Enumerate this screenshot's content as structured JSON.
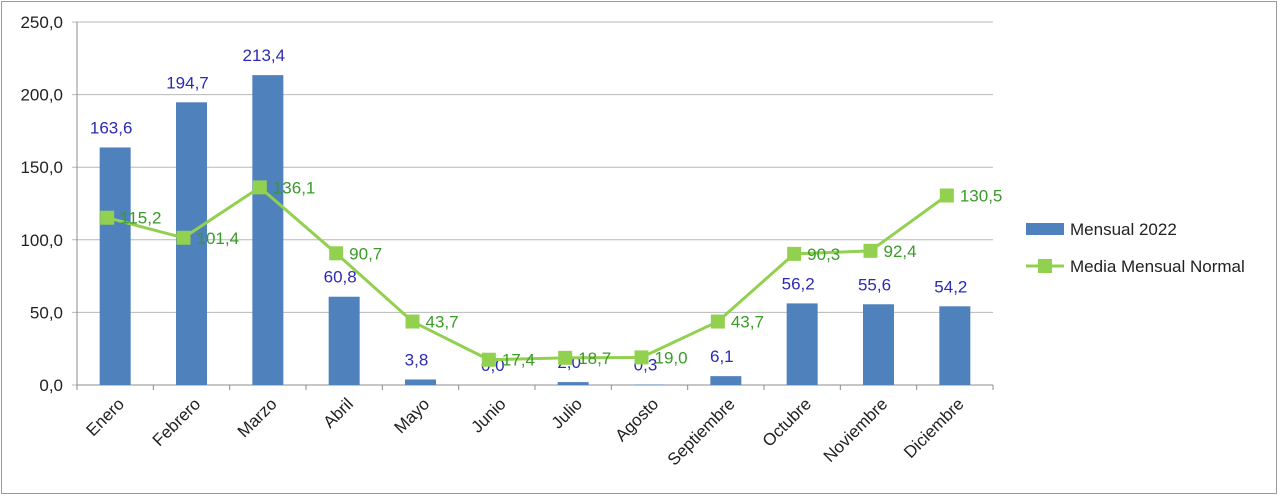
{
  "chart_data": {
    "type": "bar",
    "categories": [
      "Enero",
      "Febrero",
      "Marzo",
      "Abril",
      "Mayo",
      "Junio",
      "Julio",
      "Agosto",
      "Septiembre",
      "Octubre",
      "Noviembre",
      "Diciembre"
    ],
    "series": [
      {
        "name": "Mensual 2022",
        "type": "bar",
        "color": "#4f81bd",
        "label_color": "#2b2bb3",
        "values": [
          163.6,
          194.7,
          213.4,
          60.8,
          3.8,
          0.0,
          2.0,
          0.3,
          6.1,
          56.2,
          55.6,
          54.2
        ],
        "labels": [
          "163,6",
          "194,7",
          "213,4",
          "60,8",
          "3,8",
          "0,0",
          "2,0",
          "0,3",
          "6,1",
          "56,2",
          "55,6",
          "54,2"
        ]
      },
      {
        "name": "Media Mensual Normal",
        "type": "line",
        "color": "#92d050",
        "label_color": "#3a9a2a",
        "values": [
          115.2,
          101.4,
          136.1,
          90.7,
          43.7,
          17.4,
          18.7,
          19.0,
          43.7,
          90.3,
          92.4,
          130.5
        ],
        "labels": [
          "115,2",
          "101,4",
          "136,1",
          "90,7",
          "43,7",
          "17,4",
          "18,7",
          "19,0",
          "43,7",
          "90,3",
          "92,4",
          "130,5"
        ]
      }
    ],
    "y_ticks": [
      "0,0",
      "50,0",
      "100,0",
      "150,0",
      "200,0",
      "250,0"
    ],
    "ylim": [
      0,
      250
    ],
    "grid": true,
    "legend_position": "right"
  }
}
